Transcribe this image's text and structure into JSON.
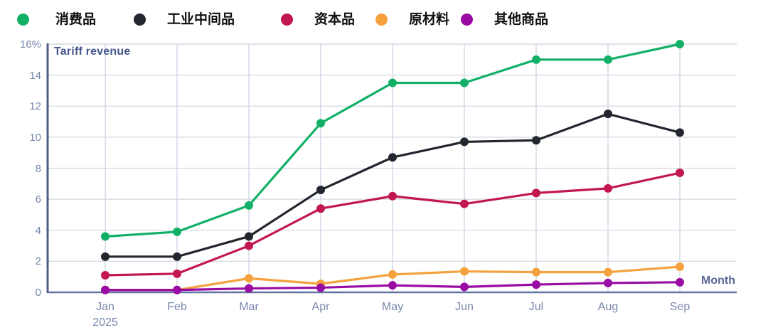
{
  "chart_data": {
    "type": "line",
    "title": "Tariff revenue",
    "xlabel": "Month",
    "ylabel": "Tariff revenue (%)",
    "categories": [
      "Jan",
      "Feb",
      "Mar",
      "Apr",
      "May",
      "Jun",
      "Jul",
      "Aug",
      "Sep"
    ],
    "x_sublabels": [
      "2025",
      "",
      "",
      "",
      "",
      "",
      "",
      "",
      ""
    ],
    "ylim": [
      0,
      16
    ],
    "ytick_step": 2,
    "ytick_labels": [
      "0",
      "2",
      "4",
      "6",
      "8",
      "10",
      "12",
      "14",
      "16%"
    ],
    "grid": true,
    "legend_position": "top",
    "series": [
      {
        "name": "消费品",
        "color": "#12b067",
        "values": [
          3.6,
          3.9,
          5.6,
          10.9,
          13.5,
          13.5,
          15.0,
          15.0,
          16.0
        ]
      },
      {
        "name": "工业中间品",
        "color": "#23262e",
        "values": [
          2.3,
          2.3,
          3.6,
          6.6,
          8.7,
          9.7,
          9.8,
          11.5,
          10.3
        ]
      },
      {
        "name": "资本品",
        "color": "#c2184f",
        "values": [
          1.1,
          1.2,
          3.0,
          5.4,
          6.2,
          5.7,
          6.4,
          6.7,
          7.7
        ]
      },
      {
        "name": "原材料",
        "color": "#f5a23e",
        "values": [
          0.15,
          0.15,
          0.9,
          0.55,
          1.15,
          1.35,
          1.3,
          1.3,
          1.65
        ]
      },
      {
        "name": "其他商品",
        "color": "#9a0ba3",
        "values": [
          0.15,
          0.15,
          0.25,
          0.3,
          0.45,
          0.35,
          0.5,
          0.6,
          0.65
        ]
      }
    ],
    "colors": {
      "grid_horizontal": "#d3d8e2",
      "grid_vertical": "#c7cedf",
      "axis_left": "#4d5d88",
      "axis_bottom": "#6373a2",
      "tick_text": "#7888ac",
      "title_text": "#44568c"
    }
  }
}
